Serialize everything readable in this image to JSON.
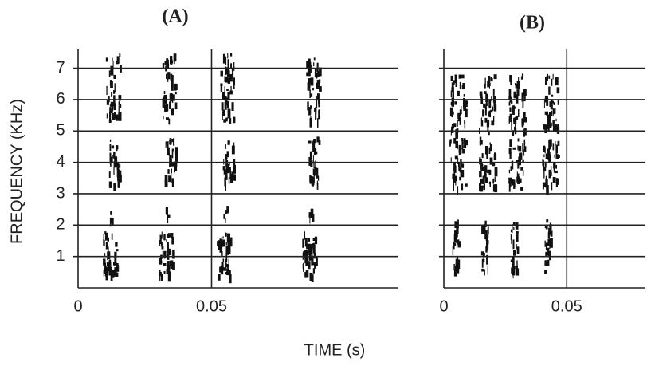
{
  "figure": {
    "xlabel": "TIME (s)",
    "ylabel": "FREQUENCY (KHz)"
  },
  "chart_data": [
    {
      "type": "spectrogram",
      "title": "(A)",
      "xlim": [
        0,
        0.12
      ],
      "xticks": [
        0,
        0.05
      ],
      "ylim": [
        0,
        7.6
      ],
      "yticks": [
        1,
        2,
        3,
        4,
        5,
        6,
        7
      ],
      "ytick_labels": true,
      "grid": true
    },
    {
      "type": "spectrogram",
      "title": "(B)",
      "xlim": [
        0,
        0.082
      ],
      "xticks": [
        0,
        0.05
      ],
      "ylim": [
        0,
        7.6
      ],
      "yticks": [
        1,
        2,
        3,
        4,
        5,
        6,
        7
      ],
      "ytick_labels": false,
      "grid": true
    }
  ]
}
